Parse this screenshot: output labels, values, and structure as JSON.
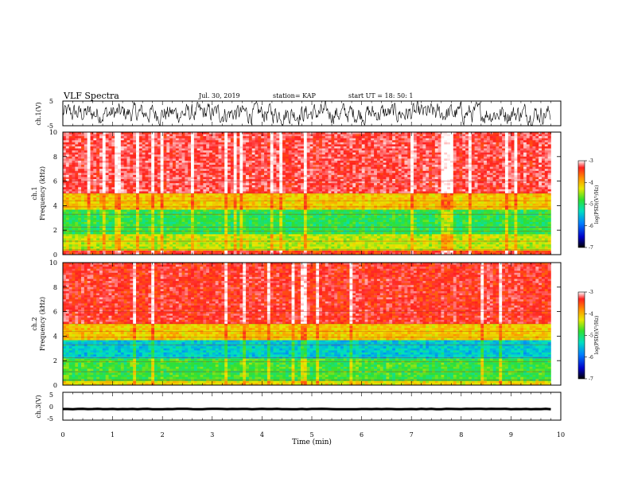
{
  "header": {
    "title": "VLF Spectra",
    "date": "Jul. 30, 2019",
    "station": "station= KAP",
    "start_time": "start UT =  18: 50: 1"
  },
  "chart_data": [
    {
      "type": "line",
      "name": "ch1-waveform",
      "ylabel": "ch.1(V)",
      "ylim": [
        -5,
        5
      ],
      "yticks": [
        "5",
        "-5"
      ],
      "xlim": [
        0,
        10
      ],
      "trace": "noisy signal between -5 and 5 V, roughly 0 to 9.8 min",
      "color": "#000000"
    },
    {
      "type": "heatmap",
      "name": "ch1-spectrogram",
      "ylabel": "ch.1\nFrequency (kHz)",
      "ylim": [
        0,
        10
      ],
      "yticks": [
        "0",
        "2",
        "4",
        "6",
        "8",
        "10"
      ],
      "xlim": [
        0,
        10
      ],
      "colorbar": {
        "label": "log(PSD)(V²/Hz)",
        "range": [
          -7,
          -3
        ],
        "ticks": [
          "-3",
          "-4",
          "-5",
          "-6",
          "-7"
        ]
      },
      "bands_khz_log_psd": [
        {
          "from": 0.0,
          "to": 0.4,
          "value": -3.6
        },
        {
          "from": 0.4,
          "to": 1.6,
          "value": -4.6
        },
        {
          "from": 1.6,
          "to": 3.6,
          "value": -5.1
        },
        {
          "from": 3.6,
          "to": 5.0,
          "value": -4.3
        },
        {
          "from": 5.0,
          "to": 10.0,
          "value": -3.4
        }
      ]
    },
    {
      "type": "heatmap",
      "name": "ch2-spectrogram",
      "ylabel": "ch.2\nFrequency (kHz)",
      "ylim": [
        0,
        10
      ],
      "yticks": [
        "0",
        "2",
        "4",
        "6",
        "8",
        "10"
      ],
      "xlim": [
        0,
        10
      ],
      "colorbar": {
        "label": "log(PSD)(V²/Hz)",
        "range": [
          -7,
          -3
        ],
        "ticks": [
          "-3",
          "-4",
          "-5",
          "-6",
          "-7"
        ]
      },
      "bands_khz_log_psd": [
        {
          "from": 0.0,
          "to": 0.4,
          "value": -4.4
        },
        {
          "from": 0.4,
          "to": 2.2,
          "value": -5.0
        },
        {
          "from": 2.2,
          "to": 3.6,
          "value": -5.6
        },
        {
          "from": 3.6,
          "to": 5.0,
          "value": -4.3
        },
        {
          "from": 5.0,
          "to": 10.0,
          "value": -3.5
        }
      ]
    },
    {
      "type": "line",
      "name": "ch3-waveform",
      "ylabel": "ch.3(V)",
      "ylim": [
        -5,
        5
      ],
      "yticks": [
        "5",
        "0",
        "-5"
      ],
      "xlim": [
        0,
        10
      ],
      "trace": "flat signal near -1 V, roughly 0 to 9.8 min",
      "color": "#000000"
    }
  ],
  "x_axis": {
    "label": "Time (min)",
    "range": [
      0,
      10
    ],
    "ticks": [
      "0",
      "1",
      "2",
      "3",
      "4",
      "5",
      "6",
      "7",
      "8",
      "9",
      "10"
    ]
  }
}
